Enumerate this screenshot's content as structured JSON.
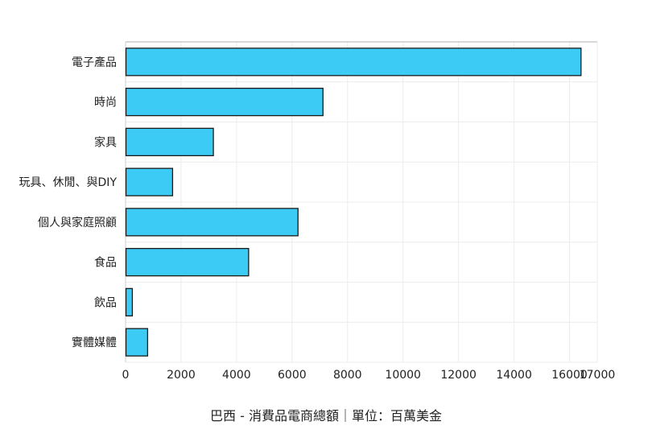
{
  "caption": "巴西 - 消費品電商總額｜單位：百萬美金",
  "chart_data": {
    "type": "bar",
    "orientation": "horizontal",
    "title": "",
    "xlabel": "",
    "ylabel": "",
    "categories": [
      "電子產品",
      "時尚",
      "家具",
      "玩具、休閒、與DIY",
      "個人與家庭照顧",
      "食品",
      "飲品",
      "實體媒體"
    ],
    "values": [
      16400,
      7100,
      3150,
      1680,
      6200,
      4420,
      230,
      780
    ],
    "xlim": [
      0,
      17000
    ],
    "xticks": [
      "0",
      "2000",
      "4000",
      "6000",
      "8000",
      "10000",
      "12000",
      "14000",
      "16000",
      "17000"
    ],
    "grid": true,
    "legend": "none",
    "bar_color": "#3ccbf4",
    "bar_border_color": "#1a1a1a"
  }
}
